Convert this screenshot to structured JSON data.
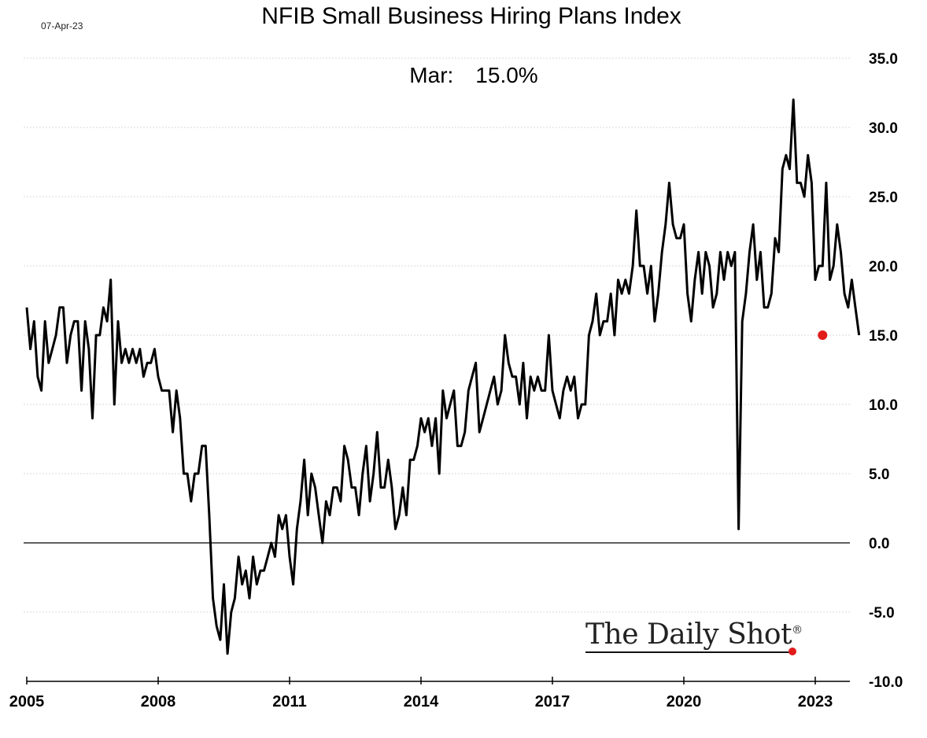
{
  "header": {
    "date_stamp": "07-Apr-23",
    "title": "NFIB Small Business Hiring Plans Index"
  },
  "latest": {
    "label": "Mar:",
    "value": "15.0%"
  },
  "branding": {
    "text": "The Daily Shot",
    "mark": "®"
  },
  "colors": {
    "line": "#000000",
    "marker": "#e21b1b",
    "grid": "#d9d9d9",
    "zero_line": "#000000"
  },
  "chart_data": {
    "type": "line",
    "title": "NFIB Small Business Hiring Plans Index",
    "xlabel": "",
    "ylabel": "",
    "x_range": [
      "2005-01",
      "2023-12"
    ],
    "ylim": [
      -10,
      35
    ],
    "y_ticks": [
      "35.0",
      "30.0",
      "25.0",
      "20.0",
      "15.0",
      "10.0",
      "5.0",
      "0.0",
      "-5.0",
      "-10.0"
    ],
    "x_ticks": [
      "2005",
      "2008",
      "2011",
      "2014",
      "2017",
      "2020",
      "2023"
    ],
    "y_axis_position": "right",
    "grid": "horizontal, dotted",
    "start": "2005-01",
    "frequency": "monthly",
    "series": [
      {
        "values": [
          17,
          14,
          16,
          12,
          11,
          16,
          13,
          14,
          15,
          17,
          17,
          13,
          15,
          16,
          16,
          11,
          16,
          14,
          9,
          15,
          15,
          17,
          16,
          19,
          10,
          16,
          13,
          14,
          13,
          14,
          13,
          14,
          12,
          13,
          13,
          14,
          12,
          11,
          11,
          11,
          8,
          11,
          9,
          5,
          5,
          3,
          5,
          5,
          7,
          7,
          2,
          -4,
          -6,
          -7,
          -3,
          -8,
          -5,
          -4,
          -1,
          -3,
          -2,
          -4,
          -1,
          -3,
          -2,
          -2,
          -1,
          0,
          -1,
          2,
          1,
          2,
          -1,
          -3,
          1,
          3,
          6,
          2,
          5,
          4,
          2,
          0,
          3,
          2,
          4,
          4,
          3,
          7,
          6,
          4,
          4,
          2,
          5,
          7,
          3,
          5,
          8,
          4,
          4,
          6,
          4,
          1,
          2,
          4,
          2,
          6,
          6,
          7,
          9,
          8,
          9,
          7,
          9,
          5,
          11,
          9,
          10,
          11,
          7,
          7,
          8,
          11,
          12,
          13,
          8,
          9,
          10,
          11,
          12,
          10,
          11,
          15,
          13,
          12,
          12,
          10,
          13,
          9,
          12,
          11,
          12,
          11,
          11,
          15,
          11,
          10,
          9,
          11,
          12,
          11,
          12,
          9,
          10,
          10,
          15,
          16,
          18,
          15,
          16,
          16,
          18,
          15,
          19,
          18,
          19,
          18,
          20,
          24,
          20,
          20,
          18,
          20,
          16,
          18,
          21,
          23,
          26,
          23,
          22,
          22,
          23,
          18,
          16,
          19,
          21,
          18,
          21,
          20,
          17,
          18,
          21,
          19,
          21,
          20,
          21,
          1,
          16,
          18,
          21,
          23,
          19,
          21,
          17,
          17,
          18,
          22,
          21,
          27,
          28,
          27,
          32,
          26,
          26,
          25,
          28,
          26,
          19,
          20,
          20,
          26,
          19,
          20,
          23,
          21,
          18,
          17,
          19,
          17,
          15
        ]
      }
    ],
    "latest_point": {
      "date": "2023-03",
      "value": 15.0
    }
  }
}
